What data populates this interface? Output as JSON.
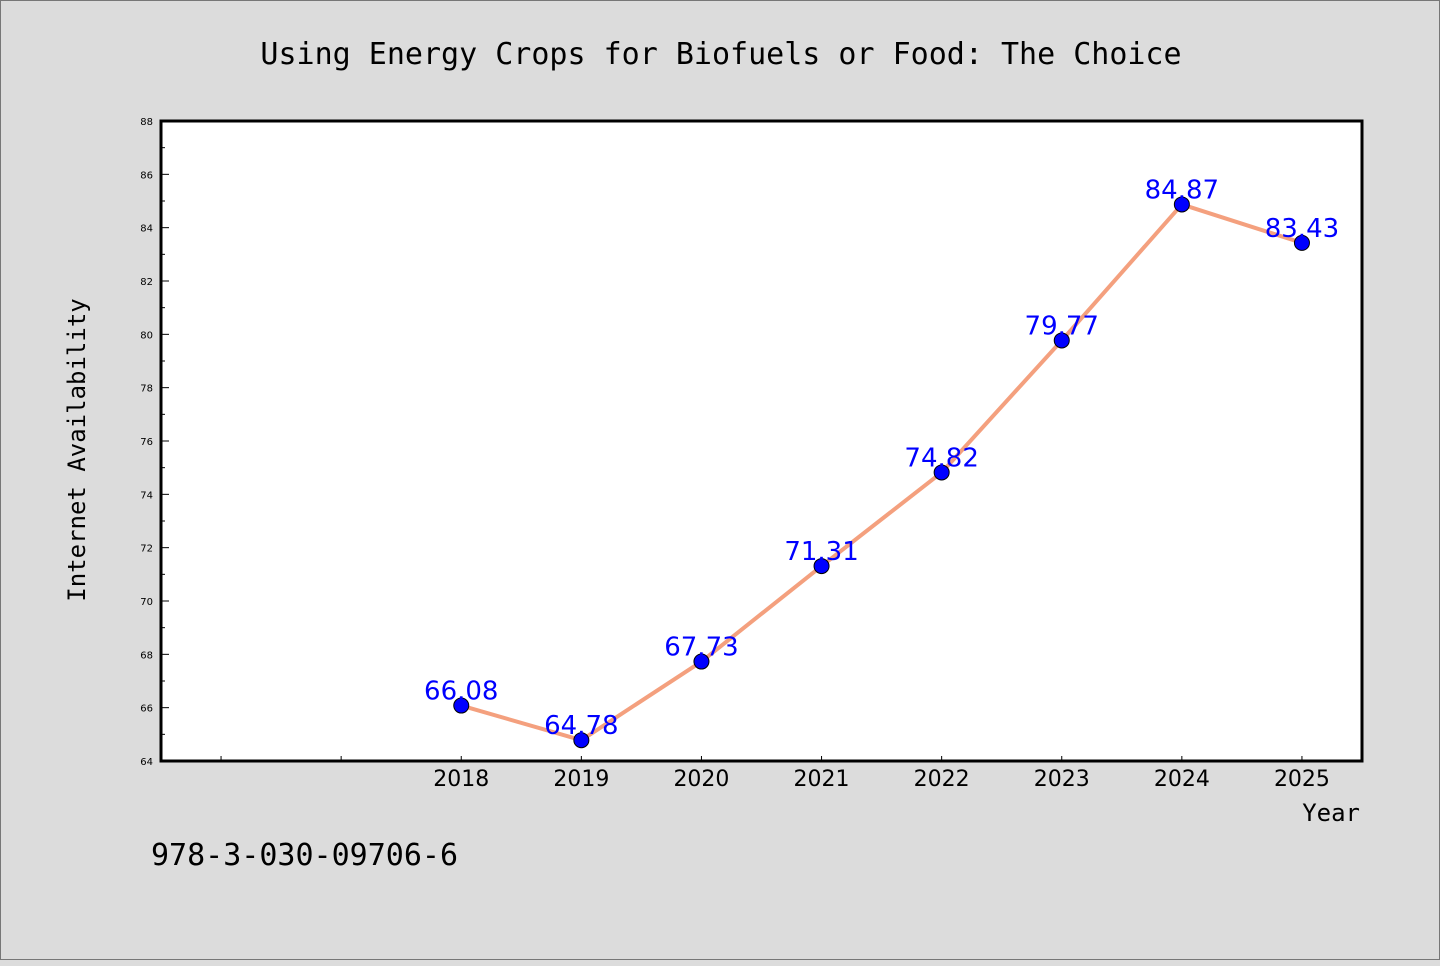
{
  "chart_data": {
    "type": "line",
    "title": "Using Energy Crops for Biofuels or Food: The Choice",
    "xlabel": "Year",
    "ylabel": "Internet Availability",
    "categories": [
      "2018",
      "2019",
      "2020",
      "2021",
      "2022",
      "2023",
      "2024",
      "2025"
    ],
    "values": [
      66.08,
      64.78,
      67.73,
      71.31,
      74.82,
      79.77,
      84.87,
      83.43
    ],
    "data_labels": [
      "66.08",
      "64.78",
      "67.73",
      "71.31",
      "74.82",
      "79.77",
      "84.87",
      "83.43"
    ],
    "ylim": [
      64,
      88
    ],
    "yticks": [
      "64",
      "66",
      "68",
      "70",
      "72",
      "74",
      "76",
      "78",
      "80",
      "82",
      "84",
      "86",
      "88"
    ],
    "grid": false,
    "legend": "none",
    "line_color": "#f4a07e",
    "marker_color": "#0000ff",
    "label_color": "#0000ff"
  },
  "footnote": "978-3-030-09706-6"
}
